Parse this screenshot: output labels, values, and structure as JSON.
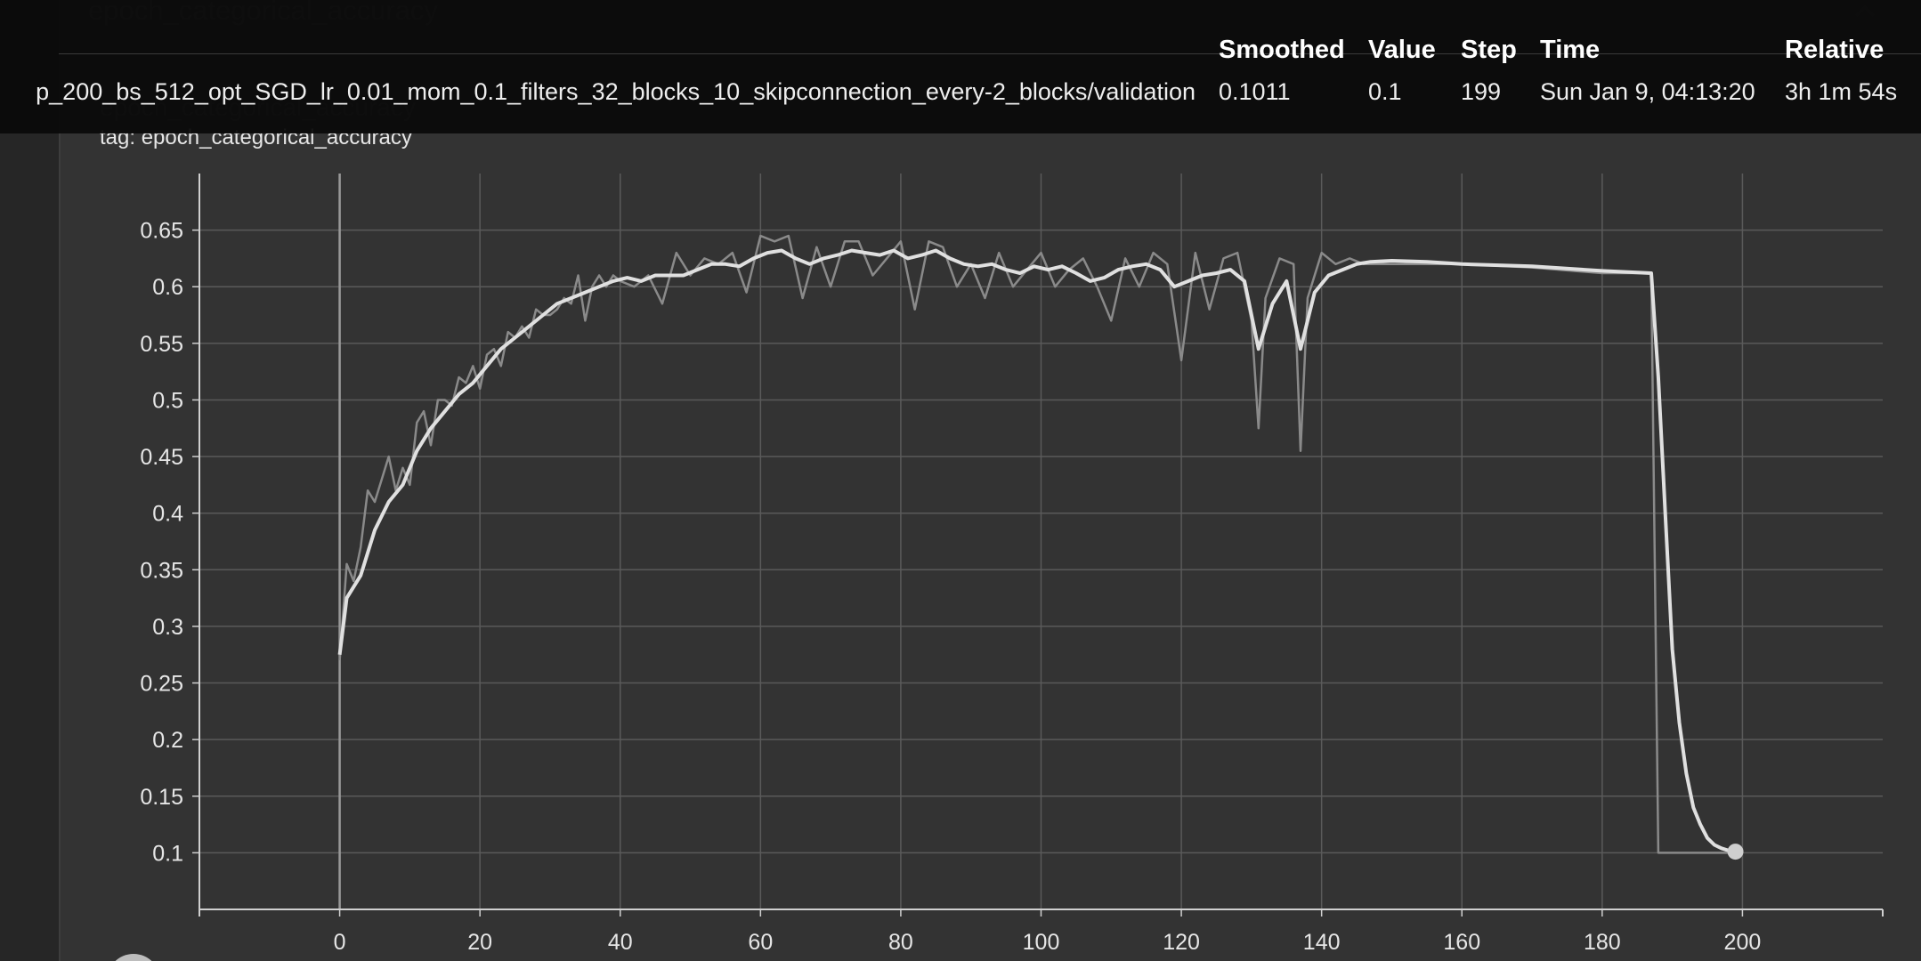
{
  "card": {
    "header_title": "epoch_categorical_accuracy",
    "chart_title": "epoch_categorical_accuracy",
    "tag_line": "tag: epoch_categorical_accuracy"
  },
  "tooltip": {
    "headers": {
      "smoothed": "Smoothed",
      "value": "Value",
      "step": "Step",
      "time": "Time",
      "relative": "Relative"
    },
    "row": {
      "run": "p_200_bs_512_opt_SGD_lr_0.01_mom_0.1_filters_32_blocks_10_skipconnection_every-2_blocks/validation",
      "smoothed": "0.1011",
      "value": "0.1",
      "step": "199",
      "time": "Sun Jan 9, 04:13:20",
      "relative": "3h 1m 54s"
    }
  },
  "colors": {
    "smoothed_line": "#e0e0e0",
    "raw_line": "#8a8a8a",
    "grid": "#5a5a5a",
    "axis": "#d0d0d0"
  },
  "chart_data": {
    "type": "line",
    "x_ticks": [
      0,
      20,
      40,
      60,
      80,
      100,
      120,
      140,
      160,
      180,
      200
    ],
    "y_ticks": [
      0.1,
      0.15,
      0.2,
      0.25,
      0.3,
      0.35,
      0.4,
      0.45,
      0.5,
      0.55,
      0.6,
      0.65
    ],
    "x_tick_labels": [
      "0",
      "20",
      "40",
      "60",
      "80",
      "100",
      "120",
      "140",
      "160",
      "180",
      "200"
    ],
    "y_tick_labels": [
      "0.1",
      "0.15",
      "0.2",
      "0.25",
      "0.3",
      "0.35",
      "0.4",
      "0.45",
      "0.5",
      "0.55",
      "0.6",
      "0.65"
    ],
    "xlim": [
      -20,
      220
    ],
    "ylim": [
      0.05,
      0.7
    ],
    "grid": true,
    "series": [
      {
        "role": "raw",
        "x": [
          0,
          1,
          2,
          3,
          4,
          5,
          6,
          7,
          8,
          9,
          10,
          11,
          12,
          13,
          14,
          15,
          16,
          17,
          18,
          19,
          20,
          21,
          22,
          23,
          24,
          25,
          26,
          27,
          28,
          29,
          30,
          31,
          32,
          33,
          34,
          35,
          36,
          37,
          38,
          39,
          40,
          42,
          44,
          46,
          48,
          50,
          52,
          54,
          56,
          58,
          60,
          62,
          64,
          66,
          68,
          70,
          72,
          74,
          76,
          78,
          80,
          82,
          84,
          86,
          88,
          90,
          92,
          94,
          96,
          98,
          100,
          102,
          104,
          106,
          108,
          110,
          112,
          114,
          116,
          118,
          120,
          122,
          124,
          126,
          128,
          130,
          131,
          132,
          134,
          136,
          137,
          138,
          140,
          142,
          144,
          146,
          150,
          160,
          170,
          180,
          187,
          188,
          199
        ],
        "y": [
          0.27,
          0.355,
          0.34,
          0.37,
          0.42,
          0.41,
          0.43,
          0.45,
          0.42,
          0.44,
          0.425,
          0.48,
          0.49,
          0.46,
          0.5,
          0.5,
          0.495,
          0.52,
          0.515,
          0.53,
          0.51,
          0.54,
          0.545,
          0.53,
          0.56,
          0.555,
          0.565,
          0.555,
          0.58,
          0.575,
          0.575,
          0.58,
          0.59,
          0.585,
          0.61,
          0.57,
          0.6,
          0.61,
          0.6,
          0.61,
          0.605,
          0.6,
          0.61,
          0.585,
          0.63,
          0.61,
          0.625,
          0.62,
          0.63,
          0.595,
          0.645,
          0.64,
          0.645,
          0.59,
          0.635,
          0.6,
          0.64,
          0.64,
          0.61,
          0.625,
          0.64,
          0.58,
          0.64,
          0.635,
          0.6,
          0.62,
          0.59,
          0.63,
          0.6,
          0.615,
          0.63,
          0.6,
          0.615,
          0.625,
          0.6,
          0.57,
          0.625,
          0.6,
          0.63,
          0.62,
          0.535,
          0.63,
          0.58,
          0.625,
          0.63,
          0.57,
          0.475,
          0.59,
          0.625,
          0.62,
          0.455,
          0.59,
          0.63,
          0.62,
          0.625,
          0.62,
          0.62,
          0.62,
          0.617,
          0.612,
          0.612,
          0.1,
          0.1
        ]
      },
      {
        "role": "smoothed",
        "x": [
          0,
          1,
          3,
          5,
          7,
          9,
          11,
          13,
          15,
          17,
          19,
          21,
          23,
          25,
          27,
          29,
          31,
          33,
          35,
          37,
          39,
          41,
          43,
          45,
          47,
          49,
          51,
          53,
          55,
          57,
          59,
          61,
          63,
          65,
          67,
          69,
          71,
          73,
          75,
          77,
          79,
          81,
          83,
          85,
          87,
          89,
          91,
          93,
          95,
          97,
          99,
          101,
          103,
          105,
          107,
          109,
          111,
          113,
          115,
          117,
          119,
          121,
          123,
          125,
          127,
          129,
          131,
          133,
          135,
          137,
          139,
          141,
          143,
          145,
          147,
          150,
          155,
          160,
          170,
          180,
          187,
          188,
          189,
          190,
          191,
          192,
          193,
          194,
          195,
          196,
          197,
          198,
          199
        ],
        "y": [
          0.275,
          0.325,
          0.345,
          0.385,
          0.41,
          0.425,
          0.455,
          0.475,
          0.49,
          0.505,
          0.515,
          0.53,
          0.545,
          0.555,
          0.565,
          0.575,
          0.585,
          0.59,
          0.595,
          0.6,
          0.605,
          0.608,
          0.605,
          0.61,
          0.61,
          0.61,
          0.615,
          0.62,
          0.62,
          0.618,
          0.625,
          0.63,
          0.632,
          0.625,
          0.62,
          0.625,
          0.628,
          0.632,
          0.63,
          0.628,
          0.632,
          0.625,
          0.628,
          0.632,
          0.625,
          0.62,
          0.618,
          0.62,
          0.615,
          0.612,
          0.618,
          0.615,
          0.618,
          0.612,
          0.605,
          0.608,
          0.615,
          0.618,
          0.62,
          0.615,
          0.6,
          0.605,
          0.61,
          0.612,
          0.615,
          0.605,
          0.545,
          0.585,
          0.605,
          0.545,
          0.595,
          0.61,
          0.615,
          0.62,
          0.622,
          0.623,
          0.622,
          0.62,
          0.618,
          0.614,
          0.612,
          0.52,
          0.4,
          0.28,
          0.215,
          0.17,
          0.14,
          0.125,
          0.113,
          0.107,
          0.104,
          0.102,
          0.101
        ]
      }
    ]
  }
}
